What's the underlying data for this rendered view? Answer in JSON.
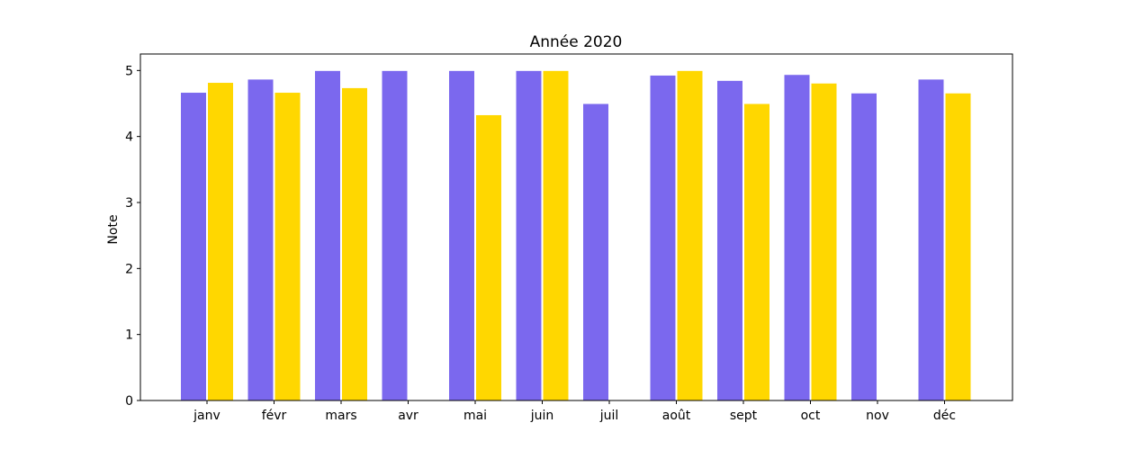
{
  "chart_data": {
    "type": "bar",
    "title": "Année 2020",
    "xlabel": "",
    "ylabel": "Note",
    "ylim": [
      0,
      5.25
    ],
    "yticks": [
      0,
      1,
      2,
      3,
      4,
      5
    ],
    "categories": [
      "janv",
      "févr",
      "mars",
      "avr",
      "mai",
      "juin",
      "juil",
      "août",
      "sept",
      "oct",
      "nov",
      "déc"
    ],
    "series": [
      {
        "color": "#7b68ee",
        "values": [
          4.67,
          4.87,
          5.0,
          5.0,
          5.0,
          5.0,
          4.5,
          4.93,
          4.85,
          4.94,
          4.66,
          4.87
        ]
      },
      {
        "color": "#ffd700",
        "values": [
          4.82,
          4.67,
          4.74,
          null,
          4.33,
          5.0,
          null,
          5.0,
          4.5,
          4.81,
          null,
          4.66
        ]
      }
    ],
    "grid": false,
    "legend": "none"
  }
}
